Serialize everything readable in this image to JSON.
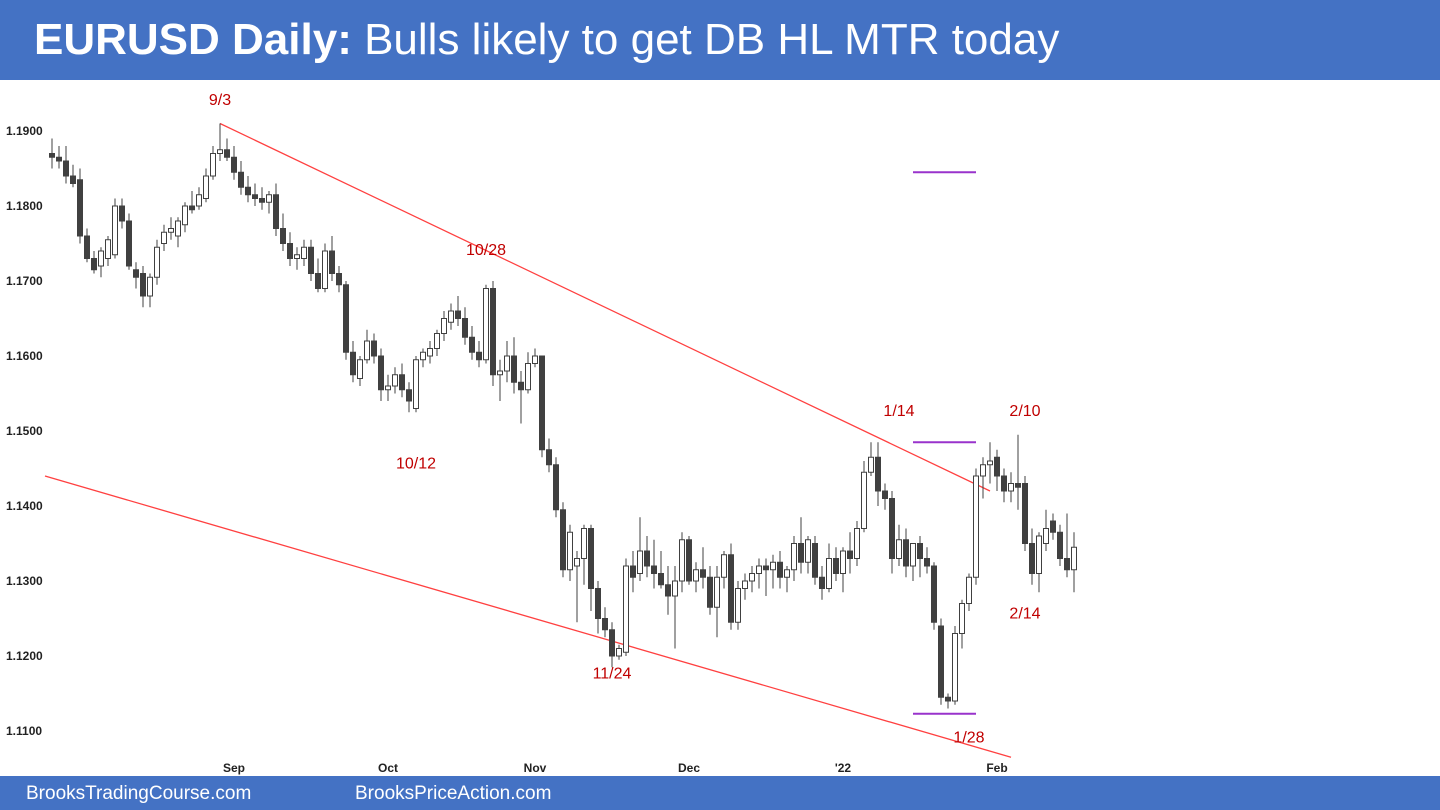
{
  "header": {
    "title_bold": "EURUSD Daily:",
    "title_rest": " Bulls likely to get DB HL MTR today",
    "bg_color": "#4472c4"
  },
  "footer": {
    "link_1": "BrooksTradingCourse.com",
    "link_2": "BrooksPriceAction.com"
  },
  "chart_data": {
    "type": "candlestick",
    "instrument": "EURUSD",
    "timeframe": "Daily",
    "ylim": [
      1.1065,
      1.1965
    ],
    "y_ticks": [
      "1.1900",
      "1.1800",
      "1.1700",
      "1.1600",
      "1.1500",
      "1.1400",
      "1.1300",
      "1.1200",
      "1.1100"
    ],
    "x_ticks": [
      {
        "label": "Sep",
        "bar": 26
      },
      {
        "label": "Oct",
        "bar": 48
      },
      {
        "label": "Nov",
        "bar": 69
      },
      {
        "label": "Dec",
        "bar": 91
      },
      {
        "label": "'22",
        "bar": 113
      },
      {
        "label": "Feb",
        "bar": 135
      }
    ],
    "colors": {
      "bull": "#ffffff",
      "bear": "#404040",
      "outline": "#404040",
      "trendline": "#ff4040",
      "measured_move": "#9933cc",
      "annotation": "#c00000"
    },
    "bars": [
      [
        1.187,
        1.189,
        1.185,
        1.1865
      ],
      [
        1.1865,
        1.188,
        1.185,
        1.186
      ],
      [
        1.186,
        1.188,
        1.183,
        1.184
      ],
      [
        1.184,
        1.1855,
        1.1825,
        1.183
      ],
      [
        1.1835,
        1.185,
        1.175,
        1.176
      ],
      [
        1.176,
        1.177,
        1.1725,
        1.173
      ],
      [
        1.173,
        1.174,
        1.171,
        1.1715
      ],
      [
        1.172,
        1.1745,
        1.1705,
        1.174
      ],
      [
        1.173,
        1.176,
        1.172,
        1.1755
      ],
      [
        1.1735,
        1.181,
        1.173,
        1.18
      ],
      [
        1.18,
        1.181,
        1.177,
        1.178
      ],
      [
        1.178,
        1.179,
        1.1715,
        1.172
      ],
      [
        1.1715,
        1.1725,
        1.169,
        1.1705
      ],
      [
        1.171,
        1.172,
        1.1665,
        1.168
      ],
      [
        1.168,
        1.171,
        1.1665,
        1.1705
      ],
      [
        1.1705,
        1.1755,
        1.1695,
        1.1745
      ],
      [
        1.175,
        1.1775,
        1.174,
        1.1765
      ],
      [
        1.1765,
        1.1785,
        1.1755,
        1.177
      ],
      [
        1.176,
        1.1785,
        1.1745,
        1.178
      ],
      [
        1.1775,
        1.1805,
        1.1765,
        1.18
      ],
      [
        1.18,
        1.182,
        1.179,
        1.1795
      ],
      [
        1.18,
        1.1825,
        1.1795,
        1.1815
      ],
      [
        1.181,
        1.185,
        1.1805,
        1.184
      ],
      [
        1.184,
        1.188,
        1.1835,
        1.187
      ],
      [
        1.187,
        1.191,
        1.186,
        1.1875
      ],
      [
        1.1875,
        1.189,
        1.186,
        1.1865
      ],
      [
        1.1865,
        1.188,
        1.1835,
        1.1845
      ],
      [
        1.1845,
        1.186,
        1.1815,
        1.1825
      ],
      [
        1.1825,
        1.184,
        1.1805,
        1.1815
      ],
      [
        1.1815,
        1.183,
        1.18,
        1.181
      ],
      [
        1.181,
        1.1825,
        1.1795,
        1.1805
      ],
      [
        1.1805,
        1.182,
        1.179,
        1.1815
      ],
      [
        1.1815,
        1.183,
        1.176,
        1.177
      ],
      [
        1.177,
        1.179,
        1.174,
        1.175
      ],
      [
        1.175,
        1.1765,
        1.172,
        1.173
      ],
      [
        1.173,
        1.1745,
        1.1715,
        1.1735
      ],
      [
        1.173,
        1.1755,
        1.172,
        1.1745
      ],
      [
        1.1745,
        1.1755,
        1.17,
        1.171
      ],
      [
        1.171,
        1.173,
        1.1685,
        1.169
      ],
      [
        1.169,
        1.175,
        1.1685,
        1.174
      ],
      [
        1.174,
        1.176,
        1.17,
        1.171
      ],
      [
        1.171,
        1.172,
        1.1685,
        1.1695
      ],
      [
        1.1695,
        1.17,
        1.1595,
        1.1605
      ],
      [
        1.1605,
        1.162,
        1.1565,
        1.1575
      ],
      [
        1.157,
        1.16,
        1.156,
        1.1595
      ],
      [
        1.1595,
        1.1635,
        1.159,
        1.162
      ],
      [
        1.162,
        1.163,
        1.159,
        1.16
      ],
      [
        1.16,
        1.161,
        1.154,
        1.1555
      ],
      [
        1.1555,
        1.1575,
        1.154,
        1.156
      ],
      [
        1.156,
        1.1585,
        1.155,
        1.1575
      ],
      [
        1.1575,
        1.159,
        1.1545,
        1.1555
      ],
      [
        1.1555,
        1.1565,
        1.1525,
        1.154
      ],
      [
        1.153,
        1.16,
        1.1525,
        1.1595
      ],
      [
        1.1595,
        1.161,
        1.1585,
        1.1605
      ],
      [
        1.16,
        1.162,
        1.159,
        1.161
      ],
      [
        1.161,
        1.1635,
        1.16,
        1.163
      ],
      [
        1.163,
        1.166,
        1.162,
        1.165
      ],
      [
        1.1645,
        1.167,
        1.1635,
        1.166
      ],
      [
        1.166,
        1.168,
        1.164,
        1.165
      ],
      [
        1.165,
        1.1665,
        1.1615,
        1.1625
      ],
      [
        1.1625,
        1.164,
        1.1595,
        1.1605
      ],
      [
        1.1605,
        1.162,
        1.1585,
        1.1595
      ],
      [
        1.1595,
        1.1695,
        1.159,
        1.169
      ],
      [
        1.169,
        1.17,
        1.156,
        1.1575
      ],
      [
        1.1575,
        1.1595,
        1.154,
        1.158
      ],
      [
        1.158,
        1.162,
        1.1565,
        1.16
      ],
      [
        1.16,
        1.1625,
        1.155,
        1.1565
      ],
      [
        1.1565,
        1.158,
        1.151,
        1.1555
      ],
      [
        1.1555,
        1.1605,
        1.155,
        1.159
      ],
      [
        1.159,
        1.161,
        1.1585,
        1.16
      ],
      [
        1.16,
        1.16,
        1.1465,
        1.1475
      ],
      [
        1.1475,
        1.149,
        1.1445,
        1.1455
      ],
      [
        1.1455,
        1.1465,
        1.1385,
        1.1395
      ],
      [
        1.1395,
        1.1405,
        1.1305,
        1.1315
      ],
      [
        1.1315,
        1.1375,
        1.13,
        1.1365
      ],
      [
        1.132,
        1.134,
        1.1245,
        1.133
      ],
      [
        1.133,
        1.1375,
        1.1295,
        1.137
      ],
      [
        1.137,
        1.1375,
        1.126,
        1.129
      ],
      [
        1.129,
        1.13,
        1.123,
        1.125
      ],
      [
        1.125,
        1.1265,
        1.1225,
        1.1235
      ],
      [
        1.1235,
        1.1245,
        1.1185,
        1.12
      ],
      [
        1.12,
        1.1215,
        1.1195,
        1.121
      ],
      [
        1.1205,
        1.133,
        1.12,
        1.132
      ],
      [
        1.132,
        1.134,
        1.1285,
        1.1305
      ],
      [
        1.131,
        1.1385,
        1.13,
        1.134
      ],
      [
        1.134,
        1.136,
        1.1305,
        1.132
      ],
      [
        1.132,
        1.1355,
        1.129,
        1.131
      ],
      [
        1.131,
        1.134,
        1.129,
        1.1295
      ],
      [
        1.1295,
        1.132,
        1.1255,
        1.128
      ],
      [
        1.128,
        1.132,
        1.121,
        1.13
      ],
      [
        1.13,
        1.1365,
        1.1285,
        1.1355
      ],
      [
        1.1355,
        1.136,
        1.1295,
        1.13
      ],
      [
        1.13,
        1.1325,
        1.1285,
        1.1315
      ],
      [
        1.1315,
        1.1345,
        1.129,
        1.1305
      ],
      [
        1.1305,
        1.132,
        1.1255,
        1.1265
      ],
      [
        1.1265,
        1.132,
        1.1225,
        1.1305
      ],
      [
        1.1305,
        1.134,
        1.129,
        1.1335
      ],
      [
        1.1335,
        1.135,
        1.1235,
        1.1245
      ],
      [
        1.1245,
        1.13,
        1.1235,
        1.129
      ],
      [
        1.129,
        1.131,
        1.1275,
        1.13
      ],
      [
        1.13,
        1.132,
        1.1285,
        1.131
      ],
      [
        1.131,
        1.133,
        1.129,
        1.132
      ],
      [
        1.132,
        1.133,
        1.128,
        1.1315
      ],
      [
        1.1315,
        1.1335,
        1.129,
        1.1325
      ],
      [
        1.1325,
        1.134,
        1.129,
        1.1305
      ],
      [
        1.1305,
        1.132,
        1.1285,
        1.1315
      ],
      [
        1.1315,
        1.136,
        1.13,
        1.135
      ],
      [
        1.135,
        1.1385,
        1.131,
        1.1325
      ],
      [
        1.1325,
        1.136,
        1.131,
        1.1355
      ],
      [
        1.135,
        1.136,
        1.1295,
        1.1305
      ],
      [
        1.1305,
        1.132,
        1.1275,
        1.129
      ],
      [
        1.129,
        1.135,
        1.1285,
        1.133
      ],
      [
        1.133,
        1.1345,
        1.13,
        1.131
      ],
      [
        1.131,
        1.1345,
        1.1285,
        1.134
      ],
      [
        1.134,
        1.1365,
        1.131,
        1.133
      ],
      [
        1.133,
        1.138,
        1.132,
        1.137
      ],
      [
        1.137,
        1.146,
        1.1365,
        1.1445
      ],
      [
        1.1445,
        1.1485,
        1.144,
        1.1465
      ],
      [
        1.1465,
        1.1485,
        1.14,
        1.142
      ],
      [
        1.142,
        1.143,
        1.1395,
        1.141
      ],
      [
        1.141,
        1.142,
        1.131,
        1.133
      ],
      [
        1.133,
        1.1375,
        1.132,
        1.1355
      ],
      [
        1.1355,
        1.137,
        1.1305,
        1.132
      ],
      [
        1.132,
        1.135,
        1.13,
        1.135
      ],
      [
        1.135,
        1.136,
        1.1305,
        1.133
      ],
      [
        1.133,
        1.1345,
        1.131,
        1.132
      ],
      [
        1.132,
        1.1325,
        1.1235,
        1.1245
      ],
      [
        1.124,
        1.125,
        1.1135,
        1.1145
      ],
      [
        1.1145,
        1.115,
        1.113,
        1.114
      ],
      [
        1.114,
        1.124,
        1.1135,
        1.123
      ],
      [
        1.123,
        1.1275,
        1.121,
        1.127
      ],
      [
        1.127,
        1.131,
        1.126,
        1.1305
      ],
      [
        1.1305,
        1.145,
        1.1295,
        1.144
      ],
      [
        1.144,
        1.1465,
        1.141,
        1.1455
      ],
      [
        1.1455,
        1.1485,
        1.143,
        1.146
      ],
      [
        1.1465,
        1.1475,
        1.142,
        1.144
      ],
      [
        1.144,
        1.145,
        1.1405,
        1.142
      ],
      [
        1.142,
        1.1445,
        1.1405,
        1.143
      ],
      [
        1.143,
        1.1495,
        1.1395,
        1.1425
      ],
      [
        1.143,
        1.144,
        1.134,
        1.135
      ],
      [
        1.135,
        1.137,
        1.1295,
        1.131
      ],
      [
        1.131,
        1.1365,
        1.1285,
        1.136
      ],
      [
        1.135,
        1.1395,
        1.134,
        1.137
      ],
      [
        1.138,
        1.139,
        1.1355,
        1.1365
      ],
      [
        1.1365,
        1.1375,
        1.132,
        1.133
      ],
      [
        1.133,
        1.139,
        1.1305,
        1.1315
      ],
      [
        1.1315,
        1.1365,
        1.1285,
        1.1345
      ]
    ],
    "trendlines": [
      {
        "name": "upper-bear-trendline",
        "from": {
          "bar": 24,
          "price": 1.191
        },
        "to": {
          "bar": 134,
          "price": 1.142
        }
      },
      {
        "name": "lower-trendline",
        "from": {
          "bar": -1,
          "price": 1.144
        },
        "to": {
          "bar": 137,
          "price": 1.1065
        }
      }
    ],
    "horizontal_lines": [
      {
        "name": "measured-move-target-line",
        "price": 1.1845,
        "from_bar": 123,
        "to_bar": 132
      },
      {
        "name": "jan14-high-line",
        "price": 1.1485,
        "from_bar": 123,
        "to_bar": 132
      },
      {
        "name": "jan28-low-line",
        "price": 1.1123,
        "from_bar": 123,
        "to_bar": 132
      }
    ],
    "annotations": [
      {
        "text": "9/3",
        "bar": 24,
        "price": 1.1935
      },
      {
        "text": "10/12",
        "bar": 52,
        "price": 1.145
      },
      {
        "text": "10/28",
        "bar": 62,
        "price": 1.1735
      },
      {
        "text": "11/24",
        "bar": 80,
        "price": 1.117
      },
      {
        "text": "1/14",
        "bar": 121,
        "price": 1.152
      },
      {
        "text": "2/10",
        "bar": 139,
        "price": 1.152
      },
      {
        "text": "2/14",
        "bar": 139,
        "price": 1.125
      },
      {
        "text": "1/28",
        "bar": 131,
        "price": 1.1085
      }
    ]
  }
}
